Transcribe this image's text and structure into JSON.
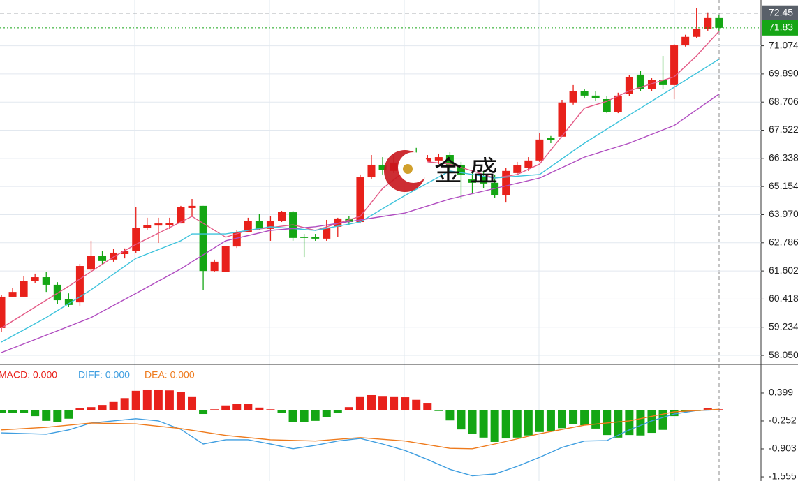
{
  "chart_data": [
    {
      "type": "candlestick",
      "open": [
        59.2,
        60.52,
        60.52,
        61.19,
        61.34,
        61.02,
        60.43,
        60.28,
        61.66,
        62.25,
        62.08,
        62.31,
        62.43,
        63.4,
        63.51,
        63.54,
        63.6,
        64.25,
        64.34,
        61.6,
        61.55,
        62.63,
        63.25,
        63.72,
        63.37,
        63.72,
        64.07,
        63.04,
        63.04,
        62.96,
        63.46,
        63.81,
        63.66,
        65.54,
        66.07,
        65.81,
        65.95,
        66.25,
        66.19,
        66.25,
        66.48,
        66.07,
        65.45,
        65.6,
        65.31,
        64.78,
        65.72,
        65.95,
        66.25,
        67.19,
        67.25,
        68.69,
        69.16,
        68.98,
        68.83,
        68.3,
        69.04,
        69.86,
        69.27,
        69.63,
        69.42,
        71.09,
        71.45,
        71.77,
        72.24
      ],
      "high": [
        60.58,
        60.9,
        61.4,
        61.49,
        61.55,
        61.13,
        60.66,
        61.9,
        62.87,
        62.43,
        62.52,
        62.55,
        64.28,
        63.84,
        63.84,
        63.84,
        64.34,
        64.63,
        64.34,
        62.08,
        62.66,
        63.31,
        63.84,
        64.01,
        63.9,
        64.13,
        64.13,
        63.16,
        63.16,
        63.75,
        63.84,
        63.9,
        65.66,
        66.48,
        66.39,
        66.54,
        66.39,
        66.78,
        66.48,
        66.54,
        66.6,
        66.19,
        65.81,
        65.81,
        65.66,
        65.95,
        66.19,
        66.39,
        67.42,
        67.28,
        68.8,
        69.42,
        69.24,
        69.18,
        68.95,
        69.1,
        69.83,
        70.01,
        69.71,
        70.65,
        71.15,
        71.54,
        72.65,
        72.48,
        72.36
      ],
      "low": [
        59.05,
        60.52,
        60.52,
        61.1,
        60.72,
        60.22,
        60.08,
        60.14,
        61.6,
        61.9,
        61.99,
        62.13,
        62.37,
        63.31,
        62.78,
        63.37,
        63.6,
        63.9,
        60.81,
        61.55,
        61.55,
        62.57,
        63.25,
        63.31,
        62.87,
        63.66,
        62.87,
        62.19,
        62.87,
        62.87,
        63.02,
        63.54,
        63.6,
        65.48,
        65.66,
        65.72,
        65.81,
        65.51,
        66.1,
        66.1,
        65.81,
        64.63,
        64.84,
        65.07,
        64.69,
        64.48,
        65.66,
        65.81,
        66.19,
        66.98,
        67.25,
        68.6,
        68.89,
        68.74,
        68.24,
        68.24,
        68.95,
        69.18,
        69.18,
        69.24,
        68.83,
        71.04,
        71.39,
        71.71,
        71.71
      ],
      "close": [
        60.52,
        60.72,
        61.19,
        61.34,
        61.02,
        60.37,
        60.17,
        61.81,
        62.25,
        62.02,
        62.37,
        62.43,
        63.4,
        63.54,
        63.6,
        63.63,
        64.28,
        64.34,
        61.6,
        61.99,
        62.66,
        63.22,
        63.72,
        63.37,
        63.72,
        64.1,
        62.99,
        62.99,
        62.96,
        63.43,
        63.81,
        63.66,
        65.54,
        66.07,
        65.86,
        66.16,
        66.25,
        66.16,
        66.34,
        66.39,
        66.07,
        65.66,
        65.31,
        65.28,
        64.78,
        65.81,
        66.04,
        66.25,
        67.13,
        67.1,
        68.69,
        69.18,
        68.98,
        68.86,
        68.3,
        68.98,
        69.77,
        69.27,
        69.63,
        69.42,
        71.09,
        71.45,
        71.77,
        72.24,
        71.83
      ],
      "up_color": "#e8211b",
      "down_color": "#14a614",
      "ylim": [
        57.67,
        73.0
      ],
      "yticks": [
        {
          "value": 58.05,
          "label": "58.050"
        },
        59.234,
        60.418,
        61.602,
        62.786,
        {
          "value": 63.97,
          "label": "63.970"
        },
        65.154,
        66.338,
        67.522,
        68.706,
        {
          "value": 69.89,
          "label": "69.890"
        },
        71.074
      ],
      "grid": true,
      "overlays": [
        {
          "color": "#e35a86",
          "x": [
            0,
            6,
            10,
            12,
            16,
            17,
            20,
            22,
            26,
            28,
            32,
            34,
            36,
            38,
            40,
            42,
            44,
            46,
            48,
            50,
            52,
            54,
            56,
            58,
            60,
            62,
            64
          ],
          "values": [
            59.2,
            60.96,
            62.19,
            62.72,
            63.66,
            63.9,
            63.02,
            63.31,
            63.54,
            63.31,
            63.9,
            65.07,
            65.81,
            66.19,
            66.1,
            65.81,
            65.51,
            65.66,
            66.1,
            67.28,
            68.45,
            68.74,
            69.18,
            69.48,
            69.77,
            70.65,
            71.68
          ]
        },
        {
          "color": "#3ec3dc",
          "x": [
            0,
            4,
            8,
            12,
            16,
            17,
            20,
            24,
            28,
            32,
            36,
            40,
            44,
            48,
            52,
            56,
            60,
            64
          ],
          "values": [
            58.61,
            59.64,
            60.81,
            62.13,
            62.87,
            63.16,
            63.16,
            63.46,
            63.31,
            63.66,
            64.78,
            65.81,
            65.51,
            65.66,
            66.98,
            68.16,
            69.33,
            70.51
          ]
        },
        {
          "color": "#b04cc0",
          "x": [
            0,
            4,
            8,
            12,
            16,
            20,
            24,
            28,
            32,
            36,
            40,
            44,
            48,
            52,
            56,
            60,
            64
          ],
          "values": [
            58.17,
            58.9,
            59.64,
            60.66,
            61.69,
            62.87,
            63.31,
            63.46,
            63.75,
            64.04,
            64.63,
            65.07,
            65.51,
            66.39,
            66.98,
            67.72,
            69.04
          ]
        }
      ],
      "price_markers": [
        {
          "value": 72.45,
          "color": "#596069"
        },
        {
          "value": 71.83,
          "color": "#16a516"
        }
      ],
      "watermark": "金 盛"
    },
    {
      "type": "macd",
      "histogram": {
        "name": "MACD: 0.000",
        "color": "#e8211b",
        "up_color": "#e8211b",
        "down_color": "#14a614",
        "values": [
          -0.07,
          -0.07,
          -0.06,
          -0.14,
          -0.25,
          -0.28,
          -0.2,
          0.04,
          0.07,
          0.12,
          0.19,
          0.28,
          0.45,
          0.48,
          0.48,
          0.46,
          0.42,
          0.32,
          -0.09,
          0.02,
          0.11,
          0.15,
          0.14,
          0.06,
          0.02,
          -0.06,
          -0.28,
          -0.28,
          -0.25,
          -0.17,
          -0.07,
          0.07,
          0.32,
          0.35,
          0.33,
          0.32,
          0.3,
          0.24,
          0.17,
          -0.02,
          -0.24,
          -0.45,
          -0.56,
          -0.64,
          -0.74,
          -0.66,
          -0.64,
          -0.59,
          -0.51,
          -0.48,
          -0.42,
          -0.32,
          -0.35,
          -0.43,
          -0.58,
          -0.64,
          -0.58,
          -0.59,
          -0.53,
          -0.46,
          -0.14,
          -0.04,
          -0.02,
          0.04,
          0.02
        ]
      },
      "series": [
        {
          "name": "DIFF: 0.000",
          "color": "#3f9ee0",
          "x": [
            0,
            4,
            6,
            8,
            12,
            14,
            16,
            18,
            20,
            22,
            24,
            26,
            28,
            30,
            32,
            34,
            36,
            38,
            40,
            42,
            44,
            46,
            48,
            50,
            52,
            54,
            56,
            58,
            60,
            62,
            64
          ],
          "values": [
            -0.53,
            -0.56,
            -0.46,
            -0.3,
            -0.2,
            -0.25,
            -0.45,
            -0.79,
            -0.69,
            -0.69,
            -0.79,
            -0.9,
            -0.82,
            -0.72,
            -0.66,
            -0.79,
            -0.94,
            -1.15,
            -1.38,
            -1.53,
            -1.49,
            -1.31,
            -1.1,
            -0.87,
            -0.72,
            -0.71,
            -0.46,
            -0.25,
            -0.09,
            -0.01,
            0.01
          ]
        },
        {
          "name": "DEA: 0.000",
          "color": "#ee7a1c",
          "x": [
            0,
            4,
            8,
            12,
            16,
            20,
            24,
            28,
            32,
            36,
            40,
            42,
            44,
            48,
            52,
            56,
            60,
            64
          ],
          "values": [
            -0.46,
            -0.4,
            -0.3,
            -0.32,
            -0.43,
            -0.59,
            -0.69,
            -0.72,
            -0.64,
            -0.72,
            -0.89,
            -0.9,
            -0.79,
            -0.55,
            -0.35,
            -0.25,
            -0.04,
            0.02
          ]
        }
      ],
      "ylim": [
        -1.652,
        1.017
      ],
      "yticks": [
        0.399,
        -0.252,
        -0.903,
        -1.555
      ]
    }
  ]
}
